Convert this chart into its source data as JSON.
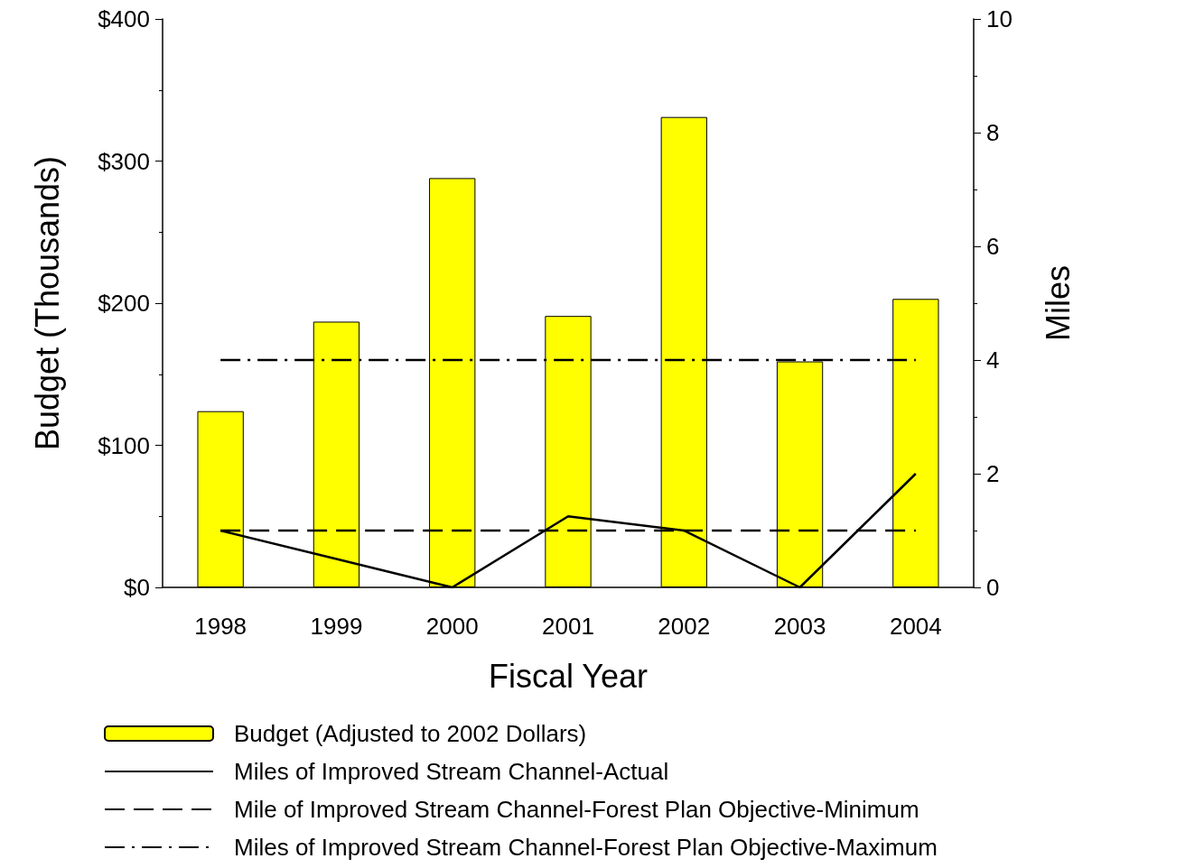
{
  "chart_data": {
    "type": "bar",
    "categories": [
      "1998",
      "1999",
      "2000",
      "2001",
      "2002",
      "2003",
      "2004"
    ],
    "xlabel": "Fiscal Year",
    "ylabel": "Budget (Thousands)",
    "y2label": "Miles",
    "series": [
      {
        "name": "Budget (Adjusted to 2002 Dollars)",
        "color": "#ffff00",
        "values": [
          124,
          187,
          288,
          191,
          331,
          159,
          203
        ]
      },
      {
        "name": "Miles of Improved Stream Channel-Actual",
        "type": "line",
        "axis": "y2",
        "color": "#000000",
        "line_style": "solid",
        "values": [
          1,
          0.5,
          0,
          1.25,
          1,
          0,
          2
        ]
      },
      {
        "name": "Mile of Improved Stream Channel-Forest Plan Objective-Minimum",
        "type": "line",
        "axis": "y2",
        "color": "#000000",
        "line_style": "dashed",
        "values": [
          1,
          1,
          1,
          1,
          1,
          1,
          1
        ]
      },
      {
        "name": "Miles of Improved Stream Channel-Forest Plan Objective-Maximum",
        "type": "line",
        "axis": "y2",
        "color": "#000000",
        "line_style": "dashdot",
        "values": [
          4,
          4,
          4,
          4,
          4,
          4,
          4
        ]
      }
    ],
    "ylim": [
      0,
      400
    ],
    "yticks": [
      {
        "value": 0,
        "label": "$0"
      },
      {
        "value": 100,
        "label": "$100"
      },
      {
        "value": 200,
        "label": "$200"
      },
      {
        "value": 300,
        "label": "$300"
      },
      {
        "value": 400,
        "label": "$400"
      }
    ],
    "y2lim": [
      0,
      10
    ],
    "y2ticks": [
      0,
      2,
      4,
      6,
      8,
      10
    ],
    "grid": false,
    "marker": "none",
    "legend": "bottom"
  }
}
